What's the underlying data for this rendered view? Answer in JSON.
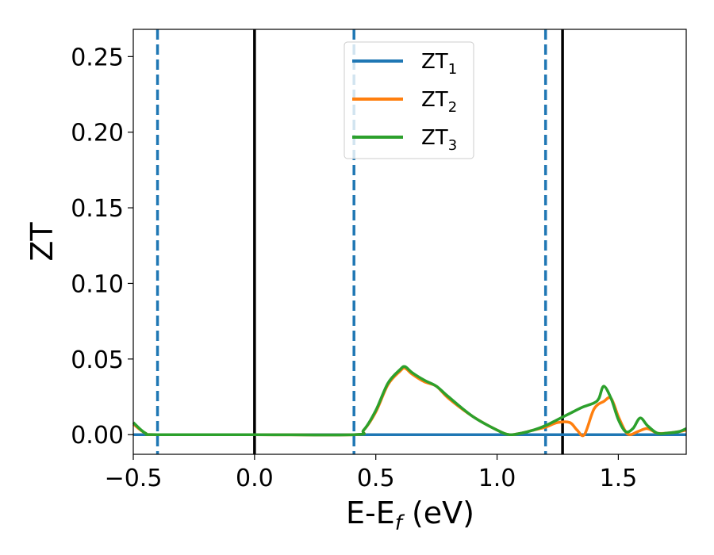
{
  "chart_data": {
    "type": "line",
    "xlabel": "E-E",
    "xlabel_sub": "f",
    "xlabel_unit": " (eV)",
    "ylabel": "ZT",
    "xlim": [
      -0.5,
      1.78
    ],
    "ylim": [
      -0.013,
      0.268
    ],
    "xticks": [
      -0.5,
      0.0,
      0.5,
      1.0,
      1.5
    ],
    "xtick_labels": [
      "−0.5",
      "0.0",
      "0.5",
      "1.0",
      "1.5"
    ],
    "yticks": [
      0.0,
      0.05,
      0.1,
      0.15,
      0.2,
      0.25
    ],
    "ytick_labels": [
      "0.00",
      "0.05",
      "0.10",
      "0.15",
      "0.20",
      "0.25"
    ],
    "legend_position": "top-center",
    "vertical_lines": [
      {
        "x": -0.4,
        "style": "dashed",
        "color": "#1f77b4"
      },
      {
        "x": 0.0,
        "style": "solid",
        "color": "#000000"
      },
      {
        "x": 0.41,
        "style": "dashed",
        "color": "#1f77b4"
      },
      {
        "x": 1.2,
        "style": "dashed",
        "color": "#1f77b4"
      },
      {
        "x": 1.27,
        "style": "solid",
        "color": "#000000"
      }
    ],
    "series": [
      {
        "name": "ZT",
        "subscript": "1",
        "color": "#1f77b4",
        "x": [
          -0.5,
          1.78
        ],
        "y": [
          0.0,
          0.0
        ]
      },
      {
        "name": "ZT",
        "subscript": "2",
        "color": "#ff7f0e",
        "x": [
          -0.5,
          -0.45,
          -0.4,
          0.0,
          0.41,
          0.45,
          0.5,
          0.55,
          0.6,
          0.62,
          0.65,
          0.7,
          0.75,
          0.8,
          0.9,
          1.0,
          1.05,
          1.1,
          1.15,
          1.2,
          1.25,
          1.3,
          1.33,
          1.36,
          1.4,
          1.44,
          1.47,
          1.5,
          1.53,
          1.55,
          1.58,
          1.62,
          1.66,
          1.7,
          1.75,
          1.78
        ],
        "y": [
          0.007,
          0.001,
          0.0,
          0.0,
          0.0,
          0.003,
          0.015,
          0.033,
          0.042,
          0.044,
          0.04,
          0.035,
          0.032,
          0.024,
          0.012,
          0.003,
          0.0,
          0.001,
          0.003,
          0.005,
          0.008,
          0.008,
          0.003,
          0.0,
          0.017,
          0.022,
          0.024,
          0.012,
          0.002,
          0.0,
          0.002,
          0.004,
          0.001,
          0.001,
          0.002,
          0.003
        ]
      },
      {
        "name": "ZT",
        "subscript": "3",
        "color": "#2ca02c",
        "x": [
          -0.5,
          -0.45,
          -0.4,
          0.0,
          0.41,
          0.45,
          0.5,
          0.55,
          0.6,
          0.62,
          0.65,
          0.7,
          0.75,
          0.8,
          0.9,
          1.0,
          1.05,
          1.1,
          1.15,
          1.2,
          1.25,
          1.3,
          1.35,
          1.4,
          1.42,
          1.44,
          1.47,
          1.5,
          1.53,
          1.56,
          1.59,
          1.62,
          1.66,
          1.7,
          1.75,
          1.78
        ],
        "y": [
          0.008,
          0.001,
          0.0,
          0.0,
          0.0,
          0.003,
          0.016,
          0.034,
          0.043,
          0.045,
          0.041,
          0.036,
          0.032,
          0.025,
          0.012,
          0.003,
          0.0,
          0.001,
          0.003,
          0.006,
          0.01,
          0.014,
          0.018,
          0.021,
          0.024,
          0.032,
          0.024,
          0.01,
          0.002,
          0.004,
          0.011,
          0.006,
          0.001,
          0.001,
          0.002,
          0.004
        ]
      }
    ]
  }
}
